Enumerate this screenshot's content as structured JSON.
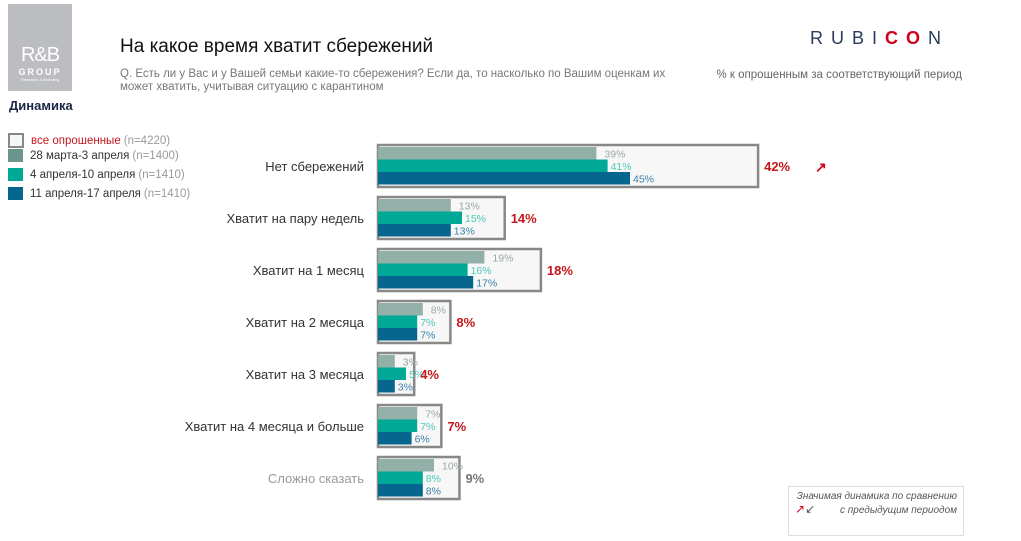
{
  "header": {
    "title": "На какое время хватит сбережений",
    "question": "Q. Есть ли у Вас и у Вашей семьи какие-то сбережения? Если да, то насколько по Вашим оценкам их может хватить, учитывая ситуацию с карантином",
    "unit": "% к опрошенным за соответствующий период",
    "section": "Динамика"
  },
  "logo": {
    "line1": "R&B",
    "line2": "GROUP",
    "line3": "Research & Branding"
  },
  "brand": {
    "name_a": "RUBI",
    "name_b": "CO",
    "name_c": "N"
  },
  "legend": [
    {
      "label": "все опрошенные",
      "n": "(n=4220)",
      "color": "#f7f7f7"
    },
    {
      "label": "28 марта-3 апреля",
      "n": "(n=1400)",
      "color": "#6b958c"
    },
    {
      "label": "4 апреля-10 апреля",
      "n": "(n=1410)",
      "color": "#00a896"
    },
    {
      "label": "11 апреля-17 апреля",
      "n": "(n=1410)",
      "color": "#07668e"
    }
  ],
  "note": {
    "text": "Значимая динамика по сравнению с предыдущим периодом",
    "icon": "arrow-up-right / arrow-down-left"
  },
  "chart_data": {
    "type": "bar",
    "categories": [
      "Нет сбережений",
      "Хватит на пару недель",
      "Хватит на 1 месяц",
      "Хватит на 2 месяца",
      "Хватит на 3 месяца",
      "Хватит на 4 месяца и больше",
      "Сложно сказать"
    ],
    "total": {
      "name": "все опрошенные",
      "values": [
        42,
        14,
        18,
        8,
        4,
        7,
        9
      ]
    },
    "series": [
      {
        "name": "28 марта-3 апреля",
        "values": [
          39,
          13,
          19,
          8,
          3,
          7,
          10
        ],
        "color": "#93b0a8",
        "labelColor": "#9aa9a5"
      },
      {
        "name": "4 апреля-10 апреля",
        "values": [
          41,
          15,
          16,
          7,
          5,
          7,
          8
        ],
        "color": "#00a896",
        "labelColor": "#4cc9b8"
      },
      {
        "name": "11 апреля-17 апреля",
        "values": [
          45,
          13,
          17,
          7,
          3,
          6,
          8
        ],
        "color": "#07668e",
        "labelColor": "#3a7fa8"
      }
    ],
    "significant_up": [
      true,
      false,
      false,
      false,
      false,
      false,
      false
    ],
    "totalColors": {
      "normal": "#c4161c",
      "last": "#777777"
    }
  }
}
